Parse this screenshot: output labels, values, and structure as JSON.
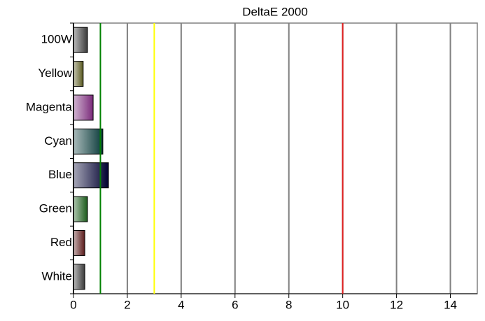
{
  "chart_data": {
    "type": "barh",
    "title": "DeltaE 2000",
    "categories": [
      "100W",
      "Yellow",
      "Magenta",
      "Cyan",
      "Blue",
      "Green",
      "Red",
      "White"
    ],
    "values": [
      0.52,
      0.36,
      0.73,
      1.09,
      1.3,
      0.52,
      0.42,
      0.42
    ],
    "colors": [
      "#3a3a3a",
      "#5a5a20",
      "#7a2a7a",
      "#0a3a3a",
      "#000030",
      "#1a5a1a",
      "#5a1a1a",
      "#3a3a3a"
    ],
    "xlim": [
      0,
      15
    ],
    "xticks": [
      0,
      2,
      4,
      6,
      8,
      10,
      12,
      14
    ],
    "grid": true,
    "reference_lines": [
      {
        "value": 1,
        "color": "#008000"
      },
      {
        "value": 3,
        "color": "#ffff00"
      },
      {
        "value": 10,
        "color": "#e02020"
      }
    ]
  }
}
